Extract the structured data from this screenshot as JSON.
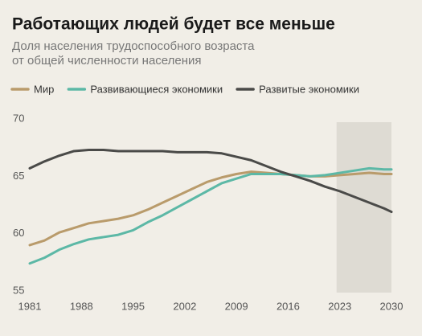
{
  "chart_data": {
    "type": "line",
    "title": "Работающих людей будет все меньше",
    "subtitle": [
      "Доля населения трудоспособного возраста",
      "от общей численности населения"
    ],
    "x": [
      1981,
      1983,
      1985,
      1987,
      1989,
      1991,
      1993,
      1995,
      1997,
      1999,
      2001,
      2003,
      2005,
      2007,
      2009,
      2011,
      2013,
      2015,
      2017,
      2019,
      2021,
      2023,
      2025,
      2027,
      2029,
      2030
    ],
    "series": [
      {
        "name": "Мир",
        "color": "#b99b6b",
        "values": [
          59.0,
          59.4,
          60.1,
          60.5,
          60.9,
          61.1,
          61.3,
          61.6,
          62.1,
          62.7,
          63.3,
          63.9,
          64.5,
          64.9,
          65.2,
          65.4,
          65.3,
          65.2,
          65.1,
          65.0,
          65.0,
          65.1,
          65.2,
          65.3,
          65.2,
          65.2
        ]
      },
      {
        "name": "Развивающиеся экономики",
        "color": "#5cb8a6",
        "values": [
          57.4,
          57.9,
          58.6,
          59.1,
          59.5,
          59.7,
          59.9,
          60.3,
          61.0,
          61.6,
          62.3,
          63.0,
          63.7,
          64.4,
          64.8,
          65.2,
          65.2,
          65.2,
          65.1,
          65.0,
          65.1,
          65.3,
          65.5,
          65.7,
          65.6,
          65.6
        ]
      },
      {
        "name": "Развитые экономики",
        "color": "#4a4a48",
        "values": [
          65.7,
          66.3,
          66.8,
          67.2,
          67.3,
          67.3,
          67.2,
          67.2,
          67.2,
          67.2,
          67.1,
          67.1,
          67.1,
          67.0,
          66.7,
          66.4,
          65.9,
          65.4,
          65.0,
          64.6,
          64.1,
          63.7,
          63.2,
          62.7,
          62.2,
          61.9
        ]
      }
    ],
    "xlim": [
      1981,
      2030
    ],
    "xticks": [
      1981,
      1988,
      1995,
      2002,
      2009,
      2016,
      2023,
      2030
    ],
    "ylim": [
      55,
      70
    ],
    "yticks": [
      55,
      60,
      65,
      70
    ],
    "highlight_xlim": [
      2023,
      2030
    ],
    "highlight_color": "#dedbd3",
    "grid": false,
    "legend": "top"
  }
}
